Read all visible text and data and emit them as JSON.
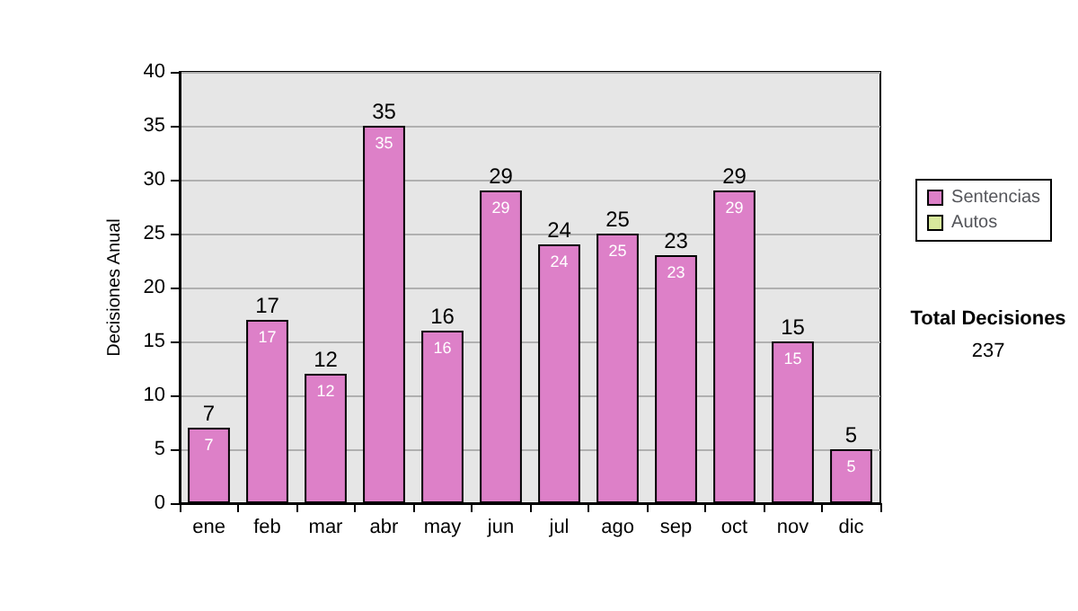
{
  "chart_data": {
    "type": "bar",
    "ylabel": "Decisiones Anual",
    "categories": [
      "ene",
      "feb",
      "mar",
      "abr",
      "may",
      "jun",
      "jul",
      "ago",
      "sep",
      "oct",
      "nov",
      "dic"
    ],
    "series": [
      {
        "name": "Sentencias",
        "color": "#dd80c8",
        "values": [
          7,
          17,
          12,
          35,
          16,
          29,
          24,
          25,
          23,
          29,
          15,
          5
        ],
        "value_labels": [
          "7",
          "17",
          "12",
          "35",
          "16",
          "29",
          "24",
          "25",
          "23",
          "29",
          "15",
          "5"
        ]
      },
      {
        "name": "Autos",
        "color": "#d8e89c",
        "values": [
          0,
          0,
          0,
          0,
          0,
          0,
          0,
          0,
          0,
          0,
          0,
          0
        ]
      }
    ],
    "stacked": true,
    "totals": [
      "7",
      "17",
      "12",
      "35",
      "16",
      "29",
      "24",
      "25",
      "23",
      "29",
      "15",
      "5"
    ],
    "ylim": [
      0,
      40
    ],
    "yticks": [
      0,
      5,
      10,
      15,
      20,
      25,
      30,
      35,
      40
    ],
    "grid": "y",
    "legend": "right",
    "annotations": [
      "Total Decisiones",
      "237"
    ]
  }
}
